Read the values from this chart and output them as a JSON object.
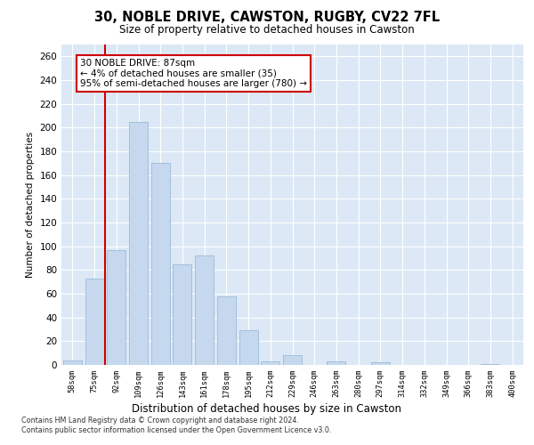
{
  "title": "30, NOBLE DRIVE, CAWSTON, RUGBY, CV22 7FL",
  "subtitle": "Size of property relative to detached houses in Cawston",
  "xlabel": "Distribution of detached houses by size in Cawston",
  "ylabel": "Number of detached properties",
  "bar_color": "#c5d8ee",
  "bar_edge_color": "#9bbcd8",
  "background_color": "#dce8f5",
  "grid_color": "#ffffff",
  "vline_color": "#cc0000",
  "vline_x": 1.5,
  "annotation_text": "30 NOBLE DRIVE: 87sqm\n← 4% of detached houses are smaller (35)\n95% of semi-detached houses are larger (780) →",
  "annotation_box_color": "#ffffff",
  "annotation_box_edge_color": "#cc0000",
  "categories": [
    "58sqm",
    "75sqm",
    "92sqm",
    "109sqm",
    "126sqm",
    "143sqm",
    "161sqm",
    "178sqm",
    "195sqm",
    "212sqm",
    "229sqm",
    "246sqm",
    "263sqm",
    "280sqm",
    "297sqm",
    "314sqm",
    "332sqm",
    "349sqm",
    "366sqm",
    "383sqm",
    "400sqm"
  ],
  "values": [
    4,
    73,
    97,
    205,
    170,
    85,
    92,
    58,
    29,
    3,
    8,
    0,
    3,
    0,
    2,
    0,
    0,
    0,
    0,
    1,
    0
  ],
  "ylim": [
    0,
    270
  ],
  "yticks": [
    0,
    20,
    40,
    60,
    80,
    100,
    120,
    140,
    160,
    180,
    200,
    220,
    240,
    260
  ],
  "footnote": "Contains HM Land Registry data © Crown copyright and database right 2024.\nContains public sector information licensed under the Open Government Licence v3.0."
}
